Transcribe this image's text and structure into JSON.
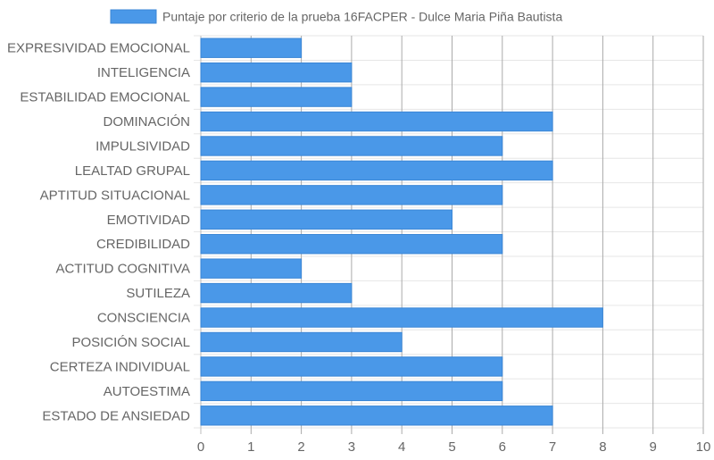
{
  "chart_data": {
    "type": "bar",
    "orientation": "horizontal",
    "series": [
      {
        "name": "Puntaje por criterio de la prueba 16FACPER - Dulce Maria Piña Bautista",
        "color": "#4a98e8",
        "values": [
          2,
          3,
          3,
          7,
          6,
          7,
          6,
          5,
          6,
          2,
          3,
          8,
          4,
          6,
          6,
          7
        ]
      }
    ],
    "categories": [
      "EXPRESIVIDAD EMOCIONAL",
      "INTELIGENCIA",
      "ESTABILIDAD EMOCIONAL",
      "DOMINACIÓN",
      "IMPULSIVIDAD",
      "LEALTAD GRUPAL",
      "APTITUD SITUACIONAL",
      "EMOTIVIDAD",
      "CREDIBILIDAD",
      "ACTITUD COGNITIVA",
      "SUTILEZA",
      "CONSCIENCIA",
      "POSICIÓN SOCIAL",
      "CERTEZA INDIVIDUAL",
      "AUTOESTIMA",
      "ESTADO DE ANSIEDAD"
    ],
    "xlim": [
      0,
      10
    ],
    "xticks": [
      "0",
      "1",
      "2",
      "3",
      "4",
      "5",
      "6",
      "7",
      "8",
      "9",
      "10"
    ],
    "grid": true,
    "legend_position": "top",
    "bar_color": "#4a98e8",
    "bar_border_color": "#3a86d6"
  }
}
